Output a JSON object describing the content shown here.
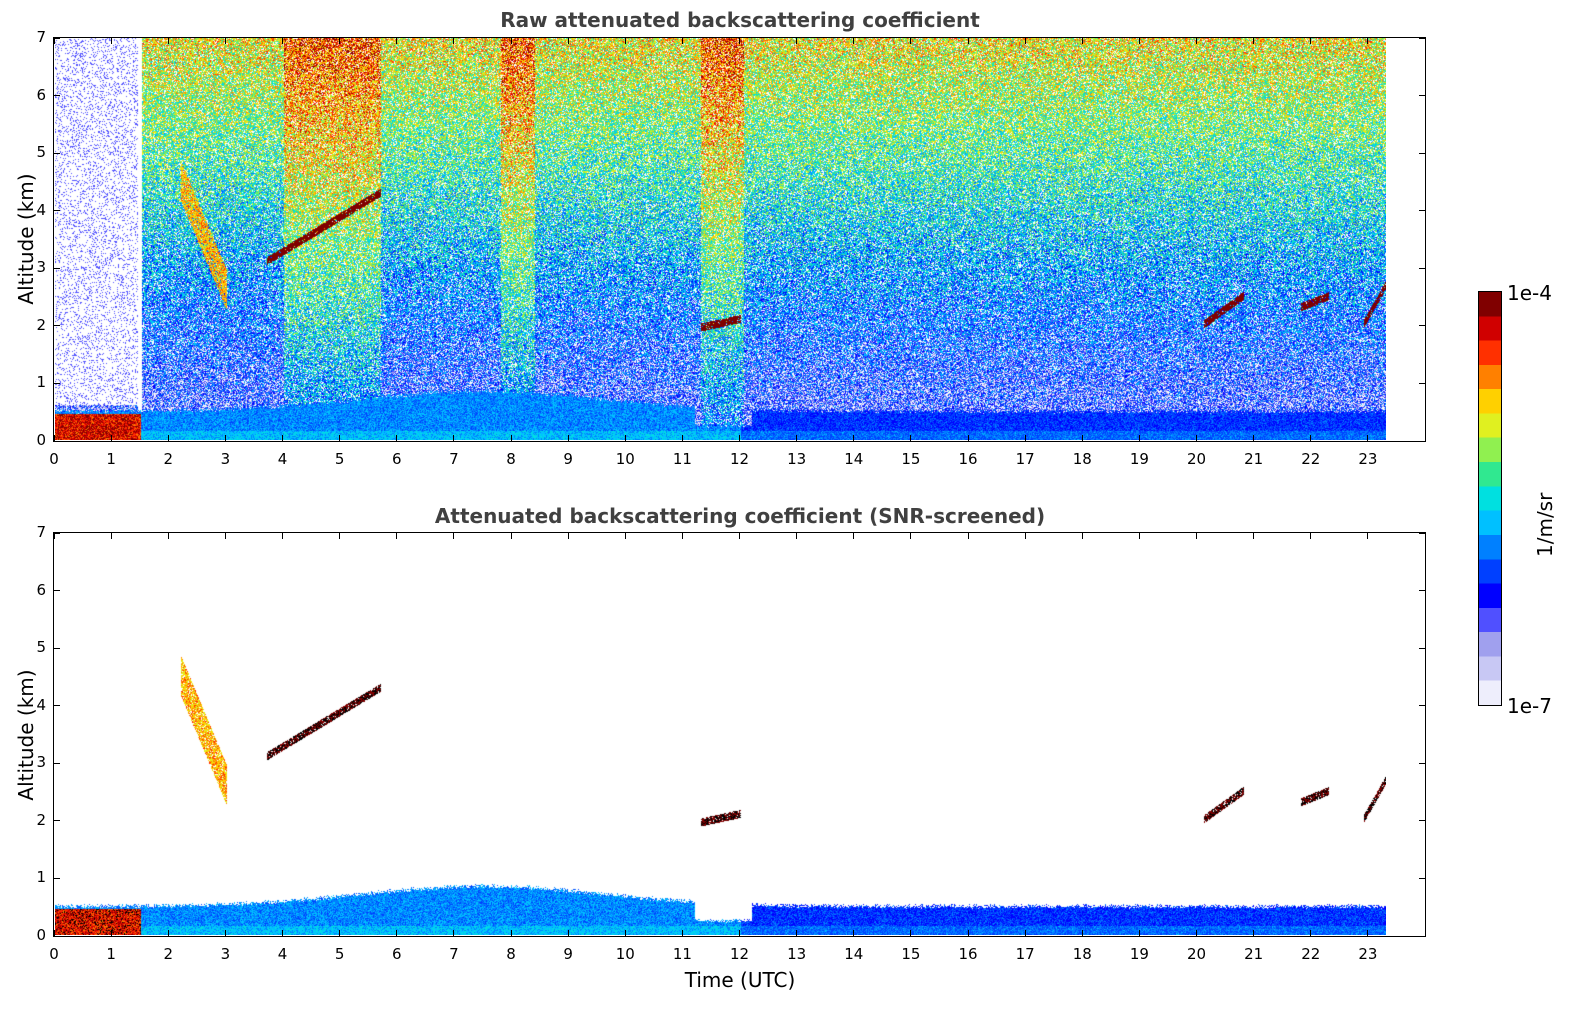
{
  "panels": [
    {
      "title": "Raw attenuated backscattering coefficient",
      "ylabel": "Altitude (km)",
      "xlabel": "",
      "mode": "raw"
    },
    {
      "title": "Attenuated backscattering coefficient (SNR-screened)",
      "ylabel": "Altitude (km)",
      "xlabel": "Time (UTC)",
      "mode": "screened"
    }
  ],
  "colorbar": {
    "top_label": "1e-4",
    "bottom_label": "1e-7",
    "unit": "1/m/sr",
    "colors": [
      "#eeeefc",
      "#c8c8f4",
      "#a0a0ee",
      "#5050ff",
      "#0000ff",
      "#0040ff",
      "#0080ff",
      "#00c0ff",
      "#00e0e0",
      "#30e890",
      "#90f050",
      "#e0f020",
      "#ffd000",
      "#ff8000",
      "#ff3000",
      "#d00000",
      "#800000"
    ]
  },
  "chart_data": [
    {
      "type": "heatmap",
      "title": "Raw attenuated backscattering coefficient",
      "xlabel": "",
      "ylabel": "Altitude (km)",
      "xlim": [
        0,
        24
      ],
      "ylim": [
        0,
        7
      ],
      "data_xlim": [
        0,
        23.3
      ],
      "xticks": [
        0,
        1,
        2,
        3,
        4,
        5,
        6,
        7,
        8,
        9,
        10,
        11,
        12,
        13,
        14,
        15,
        16,
        17,
        18,
        19,
        20,
        21,
        22,
        23
      ],
      "yticks": [
        0,
        1,
        2,
        3,
        4,
        5,
        6,
        7
      ],
      "color_scale": "log",
      "clim": [
        1e-07,
        0.0001
      ],
      "colorbar_unit": "1/m/sr",
      "features": [
        {
          "kind": "boundary_layer",
          "t_start": 0,
          "t_end": 23.3,
          "top_km": 0.5
        },
        {
          "kind": "aerosol_layer",
          "t_start": 2.2,
          "t_end": 3.0,
          "alt_bottom_km": 2.9,
          "alt_top_km": 4.8
        },
        {
          "kind": "cloud",
          "t_start": 3.7,
          "t_end": 5.7,
          "alt_bottom_km": 3.1,
          "alt_top_km": 4.3
        },
        {
          "kind": "cloud",
          "t_start": 11.3,
          "t_end": 12.0,
          "alt_bottom_km": 1.95,
          "alt_top_km": 2.1
        },
        {
          "kind": "cloud",
          "t_start": 20.1,
          "t_end": 20.8,
          "alt_bottom_km": 2.0,
          "alt_top_km": 2.5
        },
        {
          "kind": "cloud",
          "t_start": 21.8,
          "t_end": 22.3,
          "alt_bottom_km": 2.3,
          "alt_top_km": 2.5
        },
        {
          "kind": "cloud",
          "t_start": 22.9,
          "t_end": 23.3,
          "alt_bottom_km": 2.0,
          "alt_top_km": 2.7
        }
      ]
    },
    {
      "type": "heatmap",
      "title": "Attenuated backscattering coefficient (SNR-screened)",
      "xlabel": "Time (UTC)",
      "ylabel": "Altitude (km)",
      "xlim": [
        0,
        24
      ],
      "ylim": [
        0,
        7
      ],
      "data_xlim": [
        0,
        23.3
      ],
      "xticks": [
        0,
        1,
        2,
        3,
        4,
        5,
        6,
        7,
        8,
        9,
        10,
        11,
        12,
        13,
        14,
        15,
        16,
        17,
        18,
        19,
        20,
        21,
        22,
        23
      ],
      "yticks": [
        0,
        1,
        2,
        3,
        4,
        5,
        6,
        7
      ],
      "color_scale": "log",
      "clim": [
        1e-07,
        0.0001
      ],
      "colorbar_unit": "1/m/sr"
    }
  ]
}
